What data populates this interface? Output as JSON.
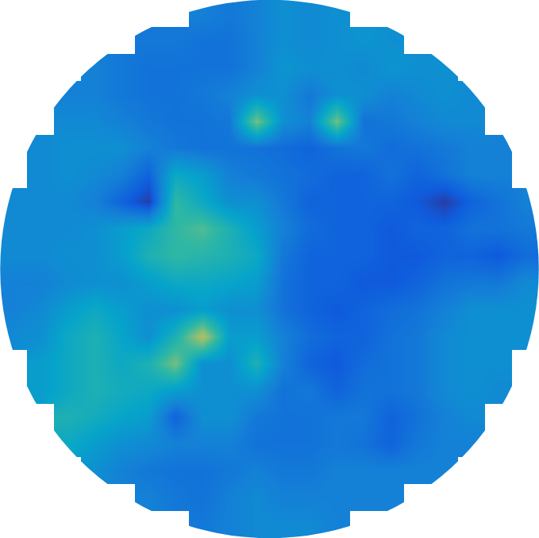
{
  "chart_data": {
    "type": "heatmap",
    "color": "parula",
    "color_range": [
      0,
      1
    ],
    "tick_labels": false,
    "cells": [
      [
        null,
        null,
        null,
        null,
        null,
        null,
        null,
        0.25,
        0.22,
        0.25,
        0.3,
        0.28,
        0.3,
        null,
        null,
        null,
        null,
        null,
        null,
        null
      ],
      [
        null,
        null,
        null,
        null,
        null,
        0.22,
        0.22,
        0.2,
        0.2,
        0.25,
        0.3,
        0.28,
        0.3,
        0.32,
        0.3,
        null,
        null,
        null,
        null,
        null
      ],
      [
        null,
        null,
        null,
        0.25,
        0.22,
        0.2,
        0.2,
        0.2,
        0.2,
        0.25,
        0.32,
        0.3,
        0.3,
        0.28,
        0.32,
        0.3,
        0.3,
        null,
        null,
        null
      ],
      [
        null,
        null,
        0.25,
        0.25,
        0.22,
        0.2,
        0.2,
        0.22,
        0.25,
        0.3,
        0.3,
        0.22,
        0.3,
        0.3,
        0.25,
        0.28,
        0.3,
        0.28,
        null,
        null
      ],
      [
        null,
        null,
        0.28,
        0.28,
        0.25,
        0.22,
        0.2,
        0.2,
        0.22,
        0.6,
        0.3,
        0.25,
        0.6,
        0.2,
        0.22,
        0.25,
        0.28,
        0.28,
        null,
        null
      ],
      [
        null,
        0.28,
        0.3,
        0.3,
        0.3,
        0.25,
        0.22,
        0.2,
        0.2,
        0.2,
        0.18,
        0.15,
        0.2,
        0.22,
        0.18,
        0.2,
        0.22,
        0.25,
        0.25,
        null
      ],
      [
        null,
        0.28,
        0.3,
        0.28,
        0.25,
        0.15,
        0.4,
        0.35,
        0.25,
        0.22,
        0.2,
        0.18,
        0.15,
        0.15,
        0.2,
        0.15,
        0.2,
        0.25,
        0.25,
        null
      ],
      [
        0.28,
        0.28,
        0.28,
        0.25,
        0.15,
        0.05,
        0.5,
        0.4,
        0.3,
        0.3,
        0.22,
        0.15,
        0.15,
        0.15,
        0.15,
        0.12,
        0.05,
        0.15,
        0.2,
        0.25
      ],
      [
        0.28,
        0.28,
        0.28,
        0.3,
        0.35,
        0.4,
        0.5,
        0.55,
        0.45,
        0.35,
        0.25,
        0.18,
        0.15,
        0.15,
        0.12,
        0.15,
        0.15,
        0.2,
        0.2,
        0.22
      ],
      [
        0.28,
        0.28,
        0.3,
        0.3,
        0.35,
        0.45,
        0.5,
        0.48,
        0.45,
        0.4,
        0.22,
        0.15,
        0.15,
        0.15,
        0.12,
        0.12,
        0.15,
        0.15,
        0.12,
        0.18
      ],
      [
        0.25,
        0.25,
        0.28,
        0.3,
        0.3,
        0.35,
        0.4,
        0.4,
        0.38,
        0.35,
        0.2,
        0.15,
        0.15,
        0.12,
        0.12,
        0.15,
        0.2,
        0.22,
        0.22,
        0.28
      ],
      [
        0.25,
        0.28,
        0.35,
        0.4,
        0.35,
        0.3,
        0.3,
        0.35,
        0.3,
        0.3,
        0.2,
        0.15,
        0.12,
        0.15,
        0.18,
        0.2,
        0.25,
        0.3,
        0.3,
        0.3
      ],
      [
        0.28,
        0.3,
        0.4,
        0.45,
        0.38,
        0.3,
        0.45,
        0.7,
        0.35,
        0.35,
        0.25,
        0.18,
        0.15,
        0.15,
        0.2,
        0.22,
        0.28,
        0.3,
        0.3,
        0.3
      ],
      [
        null,
        0.35,
        0.4,
        0.45,
        0.4,
        0.45,
        0.6,
        0.3,
        0.3,
        0.45,
        0.25,
        0.15,
        0.12,
        0.18,
        0.2,
        0.22,
        0.28,
        0.3,
        0.3,
        null
      ],
      [
        null,
        0.35,
        0.4,
        0.45,
        0.42,
        0.4,
        0.35,
        0.3,
        0.3,
        0.3,
        0.2,
        0.22,
        0.15,
        0.2,
        0.2,
        0.22,
        0.28,
        0.3,
        0.28,
        null
      ],
      [
        null,
        null,
        0.45,
        0.42,
        0.38,
        0.35,
        0.15,
        0.3,
        0.3,
        0.22,
        0.2,
        0.2,
        0.22,
        0.22,
        0.15,
        0.2,
        0.25,
        0.28,
        null,
        null
      ],
      [
        null,
        null,
        0.4,
        0.35,
        0.3,
        0.28,
        0.25,
        0.25,
        0.25,
        0.2,
        0.2,
        0.2,
        0.22,
        0.2,
        0.15,
        0.22,
        0.25,
        0.25,
        null,
        null
      ],
      [
        null,
        null,
        null,
        0.3,
        0.25,
        0.22,
        0.2,
        0.2,
        0.22,
        0.25,
        0.22,
        0.22,
        0.25,
        0.25,
        0.25,
        0.25,
        0.25,
        null,
        null,
        null
      ],
      [
        null,
        null,
        null,
        null,
        null,
        0.25,
        0.22,
        0.2,
        0.25,
        0.28,
        0.25,
        0.25,
        0.25,
        0.25,
        0.25,
        null,
        null,
        null,
        null,
        null
      ],
      [
        null,
        null,
        null,
        null,
        null,
        null,
        null,
        0.22,
        0.25,
        0.28,
        0.28,
        0.28,
        0.25,
        null,
        null,
        null,
        null,
        null,
        null,
        null
      ]
    ]
  }
}
